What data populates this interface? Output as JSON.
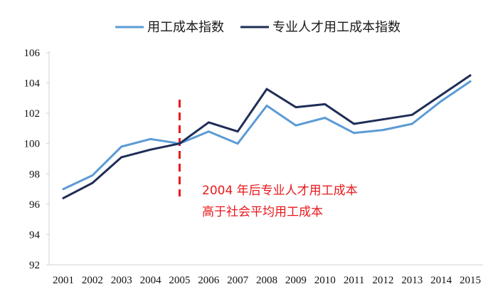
{
  "chart_data": {
    "type": "line",
    "title": "",
    "xlabel": "",
    "ylabel": "",
    "x": [
      "2001",
      "2002",
      "2003",
      "2004",
      "2005",
      "2006",
      "2007",
      "2008",
      "2009",
      "2010",
      "2011",
      "2012",
      "2013",
      "2014",
      "2015"
    ],
    "ylim": [
      92,
      106
    ],
    "yticks": [
      92,
      94,
      96,
      98,
      100,
      102,
      104,
      106
    ],
    "grid": false,
    "legend_position": "top",
    "series": [
      {
        "name": "用工成本指数",
        "color": "#5b9bd5",
        "values": [
          97.0,
          97.9,
          99.8,
          100.3,
          100.0,
          100.8,
          100.0,
          102.5,
          101.2,
          101.7,
          100.7,
          100.9,
          101.3,
          102.8,
          104.1
        ]
      },
      {
        "name": "专业人才用工成本指数",
        "color": "#1f2d56",
        "values": [
          96.4,
          97.4,
          99.1,
          99.6,
          100.0,
          101.4,
          100.8,
          103.6,
          102.4,
          102.6,
          101.3,
          101.6,
          101.9,
          103.2,
          104.5
        ]
      }
    ],
    "marker_line": {
      "x": "2005",
      "color": "#e8191c",
      "style": "dashed"
    },
    "annotation": {
      "lines": [
        "2004  年后专业人才用工成本",
        "高于社会平均用工成本"
      ],
      "color": "#e8191c"
    }
  }
}
